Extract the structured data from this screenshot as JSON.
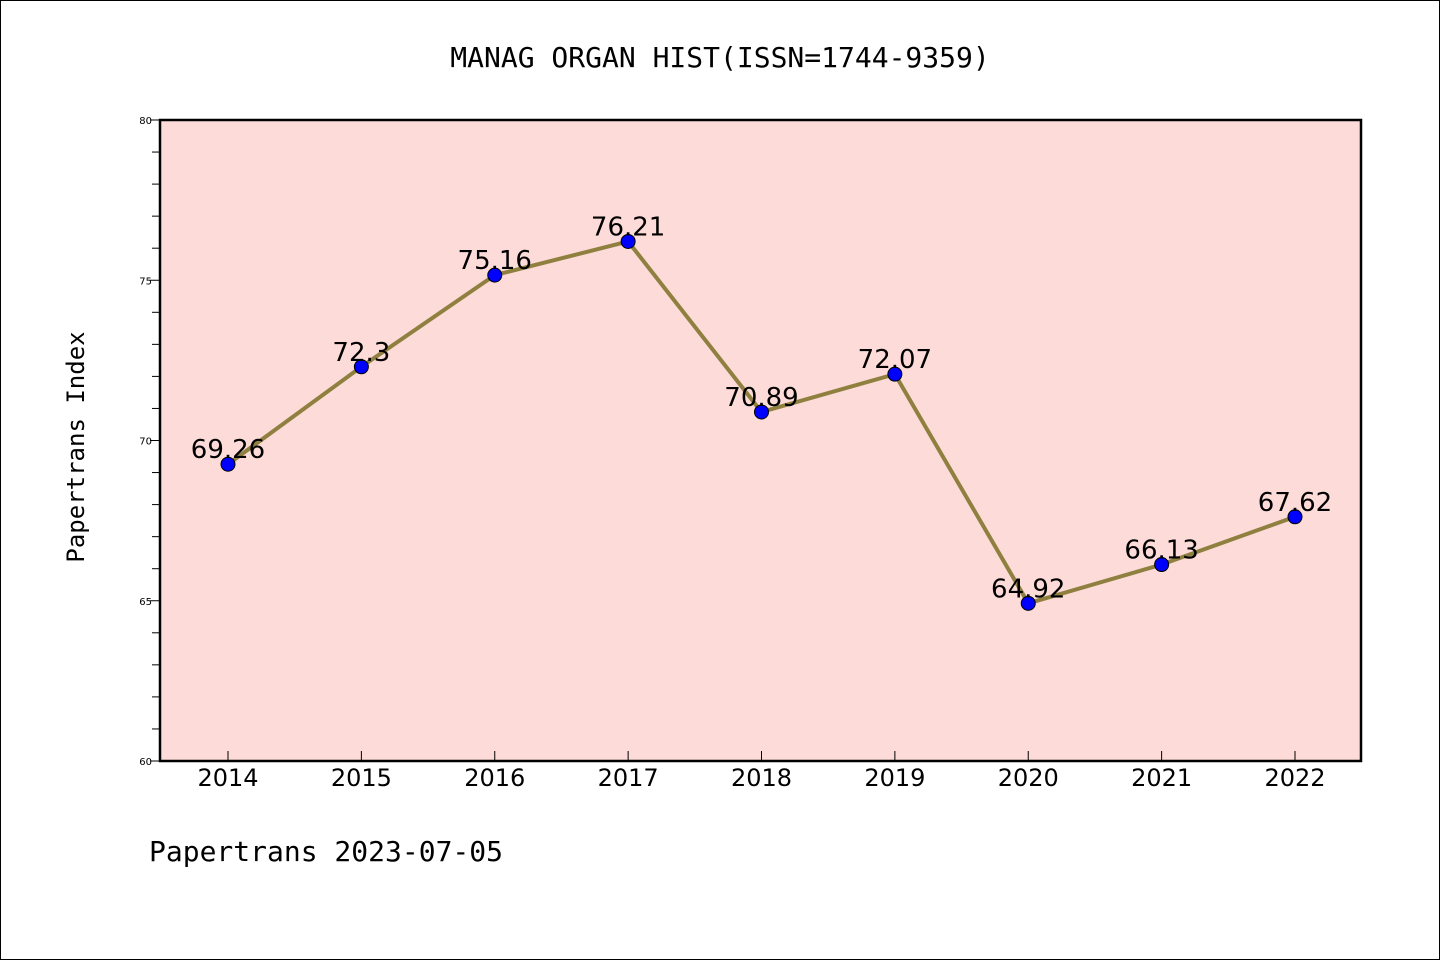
{
  "chart_data": {
    "type": "line",
    "title": "MANAG ORGAN HIST(ISSN=1744-9359)",
    "xlabel": "",
    "ylabel": "Papertrans Index",
    "categories": [
      "2014",
      "2015",
      "2016",
      "2017",
      "2018",
      "2019",
      "2020",
      "2021",
      "2022"
    ],
    "series": [
      {
        "values": [
          69.26,
          72.3,
          75.16,
          76.21,
          70.89,
          72.07,
          64.92,
          66.13,
          67.62
        ],
        "labels": [
          "69.26",
          "72.3",
          "75.16",
          "76.21",
          "70.89",
          "72.07",
          "64.92",
          "66.13",
          "67.62"
        ]
      }
    ],
    "ylim": [
      60,
      80
    ],
    "yticks": [
      "60",
      "65",
      "70",
      "75",
      "80"
    ],
    "grid": false,
    "colors": {
      "plot_background": "#fddbd8",
      "line": "#8f8040",
      "marker": "#0000ff"
    }
  },
  "footer": {
    "text": "Papertrans 2023-07-05"
  }
}
